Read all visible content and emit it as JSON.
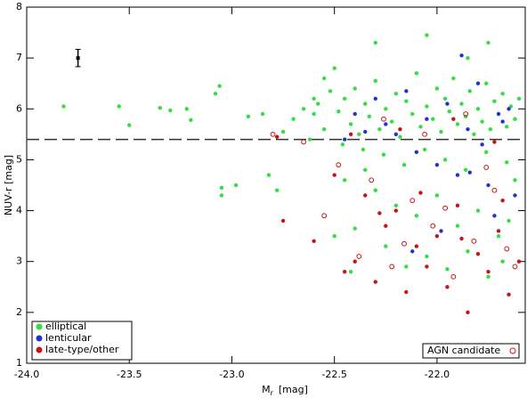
{
  "chart_data": {
    "type": "scatter",
    "xlabel": {
      "main": "M",
      "sub": "r",
      "unit": "[mag]"
    },
    "ylabel": "NUV-r [mag]",
    "xlim": [
      -24.0,
      -21.57
    ],
    "ylim": [
      1,
      8
    ],
    "xticks": [
      {
        "value": -24,
        "label": "-24.0"
      },
      {
        "value": -23.5,
        "label": "-23.5"
      },
      {
        "value": -23,
        "label": "-23.0"
      },
      {
        "value": -22.5,
        "label": "-22.5"
      },
      {
        "value": -22,
        "label": "-22.0"
      }
    ],
    "yticks": [
      1,
      2,
      3,
      4,
      5,
      6,
      7,
      8
    ],
    "hline": 5.4,
    "errorbar": {
      "x": -23.75,
      "y": 7.0,
      "err": 0.17
    },
    "series": [
      {
        "name": "elliptical",
        "color": "#33dd44",
        "marker": "filled",
        "x": [
          -23.82,
          -23.55,
          -23.5,
          -23.35,
          -23.3,
          -23.22,
          -23.2,
          -23.08,
          -23.06,
          -23.05,
          -23.05,
          -22.98,
          -22.92,
          -22.85,
          -22.82,
          -22.78,
          -22.75,
          -22.7,
          -22.6,
          -22.55,
          -22.5,
          -22.4,
          -22.42,
          -22.3,
          -22.05,
          -21.75,
          -21.85,
          -22.48,
          -22.45,
          -22.42,
          -22.4,
          -22.38,
          -22.35,
          -22.33,
          -22.3,
          -22.28,
          -22.25,
          -22.22,
          -22.2,
          -22.18,
          -22.15,
          -22.12,
          -22.1,
          -22.08,
          -22.05,
          -22.02,
          -22.0,
          -21.98,
          -21.96,
          -21.94,
          -21.92,
          -21.9,
          -21.88,
          -21.86,
          -21.84,
          -21.82,
          -21.8,
          -21.78,
          -21.76,
          -21.74,
          -21.72,
          -21.7,
          -21.68,
          -21.66,
          -21.64,
          -21.62,
          -21.6,
          -22.46,
          -22.36,
          -22.26,
          -22.16,
          -22.06,
          -21.96,
          -21.86,
          -21.76,
          -21.66,
          -21.62,
          -22.3,
          -22.2,
          -22.1,
          -22.0,
          -21.9,
          -21.8,
          -21.7,
          -21.65,
          -22.25,
          -22.15,
          -22.05,
          -21.95,
          -21.85,
          -21.75,
          -21.68,
          -22.35,
          -22.45,
          -22.5,
          -22.55,
          -22.6,
          -22.65,
          -22.62,
          -22.58,
          -22.52
        ],
        "y": [
          6.05,
          6.05,
          5.68,
          6.02,
          5.97,
          6.0,
          5.78,
          6.3,
          6.45,
          4.45,
          4.3,
          4.5,
          5.85,
          5.9,
          4.7,
          4.4,
          5.55,
          5.8,
          6.2,
          6.6,
          6.8,
          3.65,
          2.8,
          7.3,
          7.45,
          7.3,
          7.0,
          5.95,
          6.2,
          5.7,
          6.4,
          5.5,
          6.1,
          5.85,
          6.55,
          5.6,
          6.0,
          5.75,
          6.3,
          5.45,
          6.15,
          5.9,
          6.7,
          5.65,
          6.05,
          5.8,
          6.4,
          5.55,
          6.2,
          5.95,
          6.6,
          5.7,
          6.1,
          5.85,
          6.35,
          5.5,
          6.0,
          5.75,
          6.5,
          5.6,
          6.15,
          5.9,
          6.3,
          5.65,
          6.05,
          5.8,
          6.2,
          5.3,
          5.2,
          5.1,
          4.9,
          5.2,
          5.0,
          4.8,
          5.15,
          4.95,
          4.6,
          4.4,
          4.1,
          3.9,
          4.3,
          3.7,
          4.0,
          3.5,
          3.8,
          3.3,
          2.9,
          3.1,
          2.85,
          3.2,
          2.7,
          3.0,
          4.8,
          4.6,
          3.5,
          5.6,
          5.9,
          6.0,
          5.4,
          6.1,
          6.35
        ]
      },
      {
        "name": "lenticular",
        "color": "#2233cc",
        "marker": "filled",
        "x": [
          -22.45,
          -22.4,
          -22.3,
          -22.25,
          -22.2,
          -22.15,
          -22.1,
          -22.05,
          -22.0,
          -21.95,
          -21.9,
          -21.85,
          -21.8,
          -21.78,
          -21.75,
          -21.7,
          -21.65,
          -21.62,
          -21.88,
          -22.12,
          -21.98,
          -21.72,
          -21.84,
          -22.35,
          -21.68
        ],
        "y": [
          5.4,
          5.9,
          6.2,
          5.7,
          5.5,
          6.35,
          5.15,
          5.8,
          4.9,
          6.1,
          4.7,
          5.6,
          6.5,
          5.3,
          4.5,
          5.9,
          6.0,
          4.3,
          7.05,
          3.2,
          3.6,
          3.9,
          4.75,
          5.55,
          5.75
        ]
      },
      {
        "name": "late-type/other",
        "color": "#cc1111",
        "marker": "filled",
        "x": [
          -22.75,
          -22.6,
          -22.5,
          -22.4,
          -22.35,
          -22.3,
          -22.25,
          -22.2,
          -22.15,
          -22.1,
          -22.05,
          -22.0,
          -21.95,
          -21.9,
          -21.85,
          -21.8,
          -21.75,
          -21.7,
          -21.65,
          -21.6,
          -22.45,
          -22.28,
          -22.08,
          -21.88,
          -21.68,
          -22.78,
          -22.18,
          -21.92,
          -21.72,
          -22.42
        ],
        "y": [
          3.8,
          3.4,
          4.7,
          3.0,
          4.3,
          2.6,
          3.7,
          4.0,
          2.4,
          3.3,
          2.9,
          3.5,
          2.5,
          4.1,
          2.0,
          3.15,
          2.8,
          3.6,
          2.35,
          3.0,
          2.8,
          3.95,
          4.35,
          3.45,
          4.2,
          5.45,
          5.6,
          5.8,
          5.35,
          5.5
        ]
      },
      {
        "name": "AGN candidate",
        "color": "#cc1111",
        "marker": "open",
        "x": [
          -22.8,
          -22.65,
          -22.55,
          -22.48,
          -22.38,
          -22.32,
          -22.22,
          -22.12,
          -22.02,
          -21.92,
          -21.82,
          -21.72,
          -21.62,
          -22.26,
          -22.06,
          -21.86,
          -21.76,
          -22.16,
          -21.96,
          -21.66
        ],
        "y": [
          5.5,
          5.35,
          3.9,
          4.9,
          3.1,
          4.6,
          2.9,
          4.2,
          3.7,
          2.7,
          3.4,
          4.4,
          2.9,
          5.8,
          5.5,
          5.9,
          4.85,
          3.35,
          4.05,
          3.25
        ]
      }
    ]
  }
}
